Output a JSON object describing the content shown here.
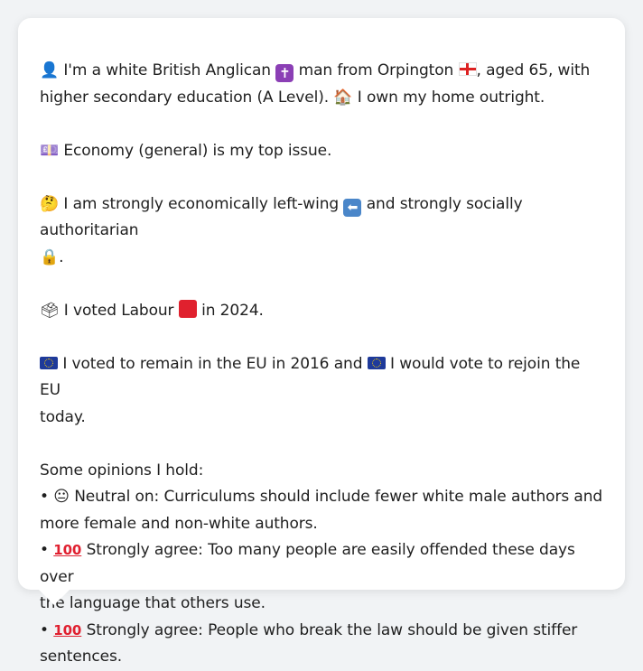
{
  "profile": {
    "line1_prefix": "I'm a white British Anglican",
    "line1_mid": "man from Orpington",
    "line1_suffix": ", aged 65, with",
    "line2": "higher secondary education (A Level).",
    "line2_home": "I own my home outright.",
    "icons": {
      "person": "👤",
      "religion": "✝",
      "flag_region": "england-flag-icon",
      "home": "🏠"
    }
  },
  "issue": {
    "icon": "💷",
    "text": "Economy (general) is my top issue."
  },
  "ideology": {
    "icon": "🤔",
    "text_a": "I am strongly economically left-wing",
    "arrow_icon": "⬅",
    "text_b": "and strongly socially authoritarian",
    "lock_icon": "🔒",
    "text_end": "."
  },
  "vote": {
    "icon": "🗳",
    "text_a": "I voted Labour",
    "text_b": "in 2024."
  },
  "eu": {
    "text_a": "I voted to remain in the EU in 2016 and",
    "text_b": "I would vote to rejoin the EU",
    "text_c": "today."
  },
  "opinions": {
    "heading": "Some opinions I hold:",
    "items": [
      {
        "bullet": "•",
        "emoji": "😐",
        "label": "Neutral on:",
        "text_line1": "Curriculums should include fewer white male authors and",
        "text_line2": "more female and non-white authors."
      },
      {
        "bullet": "•",
        "emoji": "100",
        "label": "Strongly agree:",
        "text_line1": "Too many people are easily offended these days over",
        "text_line2": "the language that others use."
      },
      {
        "bullet": "•",
        "emoji": "100",
        "label": "Strongly agree:",
        "text_line1": "People who break the law should be given stiffer",
        "text_line2": "sentences."
      }
    ]
  },
  "colors": {
    "background": "#f1f3f5",
    "card": "#ffffff",
    "text": "#1f1f1f"
  }
}
